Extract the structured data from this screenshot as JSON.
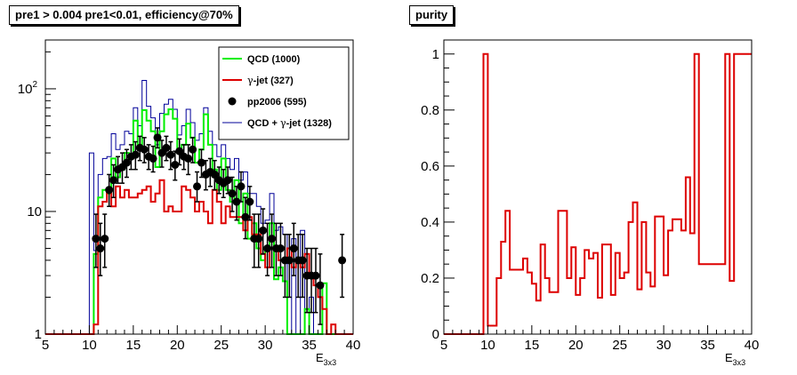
{
  "chart_data": [
    {
      "type": "line",
      "title": "pre1 > 0.004  pre1<0.01, efficiency@70%",
      "xlabel": "E_{3x3}",
      "xlabel_main": "E",
      "xlabel_sub": "3x3",
      "ylabel": "",
      "xlim": [
        5,
        40
      ],
      "ylim": [
        1,
        250
      ],
      "yscale": "log",
      "x_ticks": [
        "5",
        "10",
        "15",
        "20",
        "25",
        "30",
        "35",
        "40"
      ],
      "y_ticks": [
        {
          "label": "1",
          "value": 1
        },
        {
          "label": "10",
          "value": 10
        },
        {
          "label": "10",
          "sup": "2",
          "value": 100
        }
      ],
      "bin_edges": [
        5,
        5.5,
        6,
        6.5,
        7,
        7.5,
        8,
        8.5,
        9,
        9.5,
        10,
        10.5,
        11,
        11.5,
        12,
        12.5,
        13,
        13.5,
        14,
        14.5,
        15,
        15.5,
        16,
        16.5,
        17,
        17.5,
        18,
        18.5,
        19,
        19.5,
        20,
        20.5,
        21,
        21.5,
        22,
        22.5,
        23,
        23.5,
        24,
        24.5,
        25,
        25.5,
        26,
        26.5,
        27,
        27.5,
        28,
        28.5,
        29,
        29.5,
        30,
        30.5,
        31,
        31.5,
        32,
        32.5,
        33,
        33.5,
        34,
        34.5,
        35,
        35.5,
        36,
        36.5,
        37,
        37.5,
        38,
        38.5,
        39,
        39.5,
        40
      ],
      "legend": {
        "position": "top-right",
        "entries": [
          {
            "label": "QCD (1000)",
            "color": "#00ee00",
            "style": "line"
          },
          {
            "label_pre": "",
            "label_greek": "γ",
            "label_post": "-jet (327)",
            "color": "#dd0000",
            "style": "line"
          },
          {
            "label": "pp2006 (595)",
            "color": "#000000",
            "style": "marker"
          },
          {
            "label_pre": "QCD + ",
            "label_greek": "γ",
            "label_post": "-jet (1328)",
            "color": "#000099",
            "style": "line"
          }
        ]
      },
      "series": [
        {
          "name": "QCD (1000)",
          "color": "#00ee00",
          "values": [
            1,
            1,
            1,
            1,
            1,
            1,
            1,
            1,
            1,
            1,
            1,
            4.5,
            13,
            15,
            14,
            27,
            19,
            22,
            30,
            28,
            55,
            35,
            67,
            55,
            45,
            23,
            45,
            62,
            68,
            57,
            30,
            35,
            52,
            40,
            25,
            32,
            62,
            35,
            22,
            15,
            27,
            15,
            12,
            18,
            8,
            14,
            6,
            8,
            5,
            4,
            5,
            8,
            2.8,
            3.5,
            2.7,
            1,
            1,
            1,
            1,
            1.6,
            1,
            1,
            1,
            2.6,
            1,
            1,
            1,
            1,
            1,
            1
          ]
        },
        {
          "name": "γ-jet (327)",
          "color": "#dd0000",
          "values": [
            1,
            1,
            1,
            1,
            1,
            1,
            1,
            1,
            1,
            1,
            1,
            1.2,
            11,
            12,
            15,
            11,
            16,
            13,
            15,
            13,
            13,
            14,
            15,
            16,
            12,
            14,
            18,
            10,
            11,
            10,
            10,
            16,
            15,
            13,
            10,
            12,
            10,
            8,
            15,
            12,
            8,
            11,
            9,
            9,
            9,
            7,
            9,
            6.5,
            6.5,
            4.5,
            3.5,
            5,
            5,
            4,
            4,
            5,
            3.5,
            4,
            3.5,
            4.5,
            3,
            2.5,
            2,
            1.6,
            1,
            1.2,
            1,
            1,
            1,
            1
          ]
        },
        {
          "name": "QCD + γ-jet (1328)",
          "color": "#000099",
          "values": [
            1,
            1,
            1,
            1,
            1,
            1,
            1,
            1,
            1,
            1,
            30,
            4.8,
            20,
            27,
            28,
            43,
            32,
            35,
            45,
            43,
            70,
            50,
            117,
            72,
            58,
            35,
            63,
            75,
            82,
            68,
            42,
            50,
            68,
            53,
            38,
            43,
            70,
            45,
            35,
            28,
            35,
            27,
            22,
            27,
            18,
            21,
            14,
            14,
            11,
            8,
            8.5,
            14,
            7,
            7.5,
            6.5,
            1,
            6,
            1,
            7,
            1.6,
            2,
            1,
            1,
            2.6,
            1,
            1,
            1,
            1,
            1,
            1
          ]
        },
        {
          "name": "pp2006 (595)",
          "color": "#000000",
          "type": "scatter",
          "x": [
            10.75,
            11.25,
            11.75,
            12.25,
            12.75,
            13.25,
            13.75,
            14.25,
            14.75,
            15.25,
            15.75,
            16.25,
            16.75,
            17.25,
            17.75,
            18.25,
            18.75,
            19.25,
            19.75,
            20.25,
            20.75,
            21.25,
            21.75,
            22.25,
            22.75,
            23.25,
            23.75,
            24.25,
            24.75,
            25.25,
            25.75,
            26.25,
            26.75,
            27.25,
            27.75,
            28.25,
            28.75,
            29.25,
            29.75,
            30.25,
            30.75,
            31.25,
            31.75,
            32.25,
            32.75,
            33.25,
            33.75,
            34.25,
            34.75,
            35.25,
            35.75,
            36.25,
            36.75,
            37.25,
            37.75,
            38.25,
            38.75,
            39.25
          ],
          "y": [
            6,
            5,
            6,
            15,
            18,
            22,
            23,
            25,
            28,
            29,
            33,
            32,
            28,
            27,
            40,
            30,
            33,
            29,
            24,
            31,
            28,
            27,
            32,
            16,
            25,
            20,
            21,
            20,
            18,
            17,
            18,
            14,
            12,
            16,
            9,
            12,
            6,
            6,
            7,
            5,
            6,
            5,
            5,
            4,
            4,
            5,
            4,
            4,
            3,
            3,
            3,
            2.5,
            1,
            1,
            1,
            1,
            4,
            1
          ],
          "y_low": [
            3.5,
            3,
            3.5,
            11,
            13,
            17,
            17,
            19,
            22,
            22,
            26,
            25,
            22,
            21,
            33,
            23,
            26,
            22,
            18,
            24,
            22,
            20,
            25,
            12,
            19,
            15,
            16,
            15,
            14,
            13,
            14,
            10,
            8.5,
            12,
            6,
            8.5,
            3.5,
            3.5,
            4.5,
            3,
            3.5,
            3,
            3,
            2,
            2,
            3,
            2,
            2,
            1.5,
            1.5,
            1.5,
            1.2,
            1,
            1,
            1,
            1,
            2,
            1
          ],
          "y_high": [
            9.5,
            8,
            9.5,
            20,
            24,
            28,
            30,
            32,
            35,
            37,
            41,
            40,
            35,
            34,
            48,
            38,
            41,
            37,
            31,
            39,
            35,
            35,
            40,
            21,
            32,
            26,
            27,
            26,
            23,
            22,
            23,
            19,
            16,
            21,
            13,
            16,
            9.5,
            9.5,
            10.5,
            8,
            9.5,
            8,
            8,
            6.5,
            6.5,
            8,
            6.5,
            6.5,
            5,
            5,
            5,
            4.5,
            1,
            1,
            1,
            1,
            6.5,
            2.5
          ]
        }
      ]
    },
    {
      "type": "line",
      "title": "purity",
      "xlabel": "E_{3x3}",
      "xlabel_main": "E",
      "xlabel_sub": "3x3",
      "ylabel": "",
      "xlim": [
        5,
        40
      ],
      "ylim": [
        0,
        1.05
      ],
      "x_ticks": [
        "5",
        "10",
        "15",
        "20",
        "25",
        "30",
        "35",
        "40"
      ],
      "y_ticks": [
        "0",
        "0.2",
        "0.4",
        "0.6",
        "0.8",
        "1"
      ],
      "series": [
        {
          "name": "",
          "color": "#dd0000",
          "bin_edges": [
            5,
            9.5,
            10,
            11,
            11.5,
            12,
            12.5,
            13,
            14,
            14.5,
            15,
            15.5,
            16,
            16.5,
            17,
            18,
            19,
            19.5,
            20,
            20.5,
            21,
            21.5,
            22,
            22.5,
            23,
            24,
            24.5,
            25,
            25.5,
            26,
            26.5,
            27,
            27.5,
            28,
            28.5,
            29,
            30,
            30.5,
            31,
            32,
            32.5,
            33,
            33.5,
            34,
            37,
            37.5,
            38,
            40
          ],
          "values": [
            0,
            1,
            0.03,
            0.2,
            0.33,
            0.44,
            0.23,
            0.23,
            0.27,
            0.22,
            0.18,
            0.12,
            0.32,
            0.2,
            0.15,
            0.44,
            0.2,
            0.31,
            0.14,
            0.2,
            0.3,
            0.27,
            0.29,
            0.13,
            0.32,
            0.14,
            0.29,
            0.2,
            0.22,
            0.4,
            0.47,
            0.16,
            0.4,
            0.22,
            0.17,
            0.42,
            0.21,
            0.37,
            0.41,
            0.37,
            0.56,
            0.36,
            1,
            0.25,
            1,
            0.19,
            1
          ]
        }
      ]
    }
  ]
}
